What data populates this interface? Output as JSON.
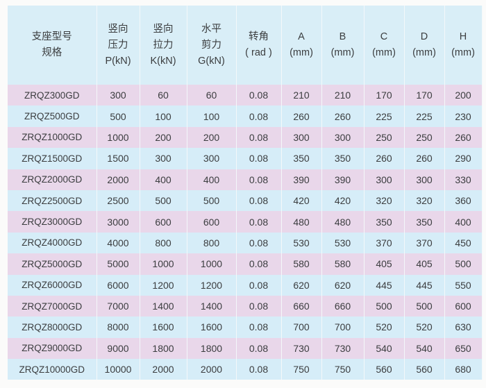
{
  "table": {
    "headers": [
      [
        "支座型号",
        "规格"
      ],
      [
        "竖向",
        "压力",
        "P(kN)"
      ],
      [
        "竖向",
        "拉力",
        "K(kN)"
      ],
      [
        "水平",
        "剪力",
        "G(kN)"
      ],
      [
        "转角",
        "( rad )"
      ],
      [
        "A",
        "(mm)"
      ],
      [
        "B",
        "(mm)"
      ],
      [
        "C",
        "(mm)"
      ],
      [
        "D",
        "(mm)"
      ],
      [
        "H",
        "(mm)"
      ]
    ],
    "rows": [
      [
        "ZRQZ300GD",
        "300",
        "60",
        "60",
        "0.08",
        "210",
        "210",
        "170",
        "170",
        "200"
      ],
      [
        "ZRQZ500GD",
        "500",
        "100",
        "100",
        "0.08",
        "260",
        "260",
        "225",
        "225",
        "230"
      ],
      [
        "ZRQZ1000GD",
        "1000",
        "200",
        "200",
        "0.08",
        "300",
        "300",
        "250",
        "250",
        "260"
      ],
      [
        "ZRQZ1500GD",
        "1500",
        "300",
        "300",
        "0.08",
        "350",
        "350",
        "260",
        "260",
        "290"
      ],
      [
        "ZRQZ2000GD",
        "2000",
        "400",
        "400",
        "0.08",
        "390",
        "390",
        "300",
        "300",
        "330"
      ],
      [
        "ZRQZ2500GD",
        "2500",
        "500",
        "500",
        "0.08",
        "420",
        "420",
        "320",
        "320",
        "360"
      ],
      [
        "ZRQZ3000GD",
        "3000",
        "600",
        "600",
        "0.08",
        "480",
        "480",
        "350",
        "350",
        "400"
      ],
      [
        "ZRQZ4000GD",
        "4000",
        "800",
        "800",
        "0.08",
        "530",
        "530",
        "370",
        "370",
        "450"
      ],
      [
        "ZRQZ5000GD",
        "5000",
        "1000",
        "1000",
        "0.08",
        "580",
        "580",
        "405",
        "405",
        "500"
      ],
      [
        "ZRQZ6000GD",
        "6000",
        "1200",
        "1200",
        "0.08",
        "620",
        "620",
        "445",
        "445",
        "550"
      ],
      [
        "ZRQZ7000GD",
        "7000",
        "1400",
        "1400",
        "0.08",
        "660",
        "660",
        "500",
        "500",
        "600"
      ],
      [
        "ZRQZ8000GD",
        "8000",
        "1600",
        "1600",
        "0.08",
        "700",
        "700",
        "520",
        "520",
        "630"
      ],
      [
        "ZRQZ9000GD",
        "9000",
        "1800",
        "1800",
        "0.08",
        "730",
        "730",
        "540",
        "540",
        "650"
      ],
      [
        "ZRQZ10000GD",
        "10000",
        "2000",
        "2000",
        "0.08",
        "750",
        "750",
        "560",
        "560",
        "680"
      ]
    ]
  },
  "colors": {
    "header_bg": "#d9eef7",
    "row_pink": "#e9d7ea",
    "row_blue": "#d6edf8",
    "text": "#3b3d3f"
  }
}
